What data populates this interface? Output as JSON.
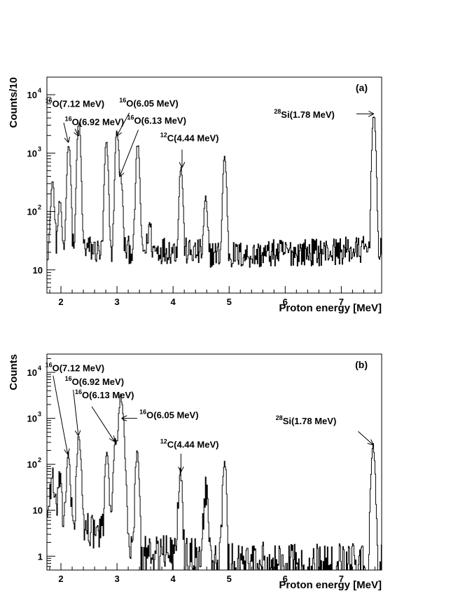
{
  "chart_data": [
    {
      "type": "histogram",
      "panel_label": "(a)",
      "xlabel": "Proton energy [MeV]",
      "ylabel": "Counts/10",
      "xlim": [
        1.75,
        7.72
      ],
      "ylim": [
        4,
        20000
      ],
      "yscale": "log",
      "xticks": [
        2,
        3,
        4,
        5,
        6,
        7
      ],
      "yticks": [
        {
          "value": 10,
          "base": "10",
          "exp": ""
        },
        {
          "value": 100,
          "base": "10",
          "exp": "2"
        },
        {
          "value": 1000,
          "base": "10",
          "exp": "3"
        },
        {
          "value": 10000,
          "base": "10",
          "exp": "4"
        }
      ],
      "background": [
        [
          1.75,
          25
        ],
        [
          2.25,
          28
        ],
        [
          2.45,
          24
        ],
        [
          2.7,
          20
        ],
        [
          3.2,
          22
        ],
        [
          3.5,
          22
        ],
        [
          4.0,
          22
        ],
        [
          4.3,
          20
        ],
        [
          5.0,
          18
        ],
        [
          5.5,
          18
        ],
        [
          6.0,
          20
        ],
        [
          6.5,
          20
        ],
        [
          7.0,
          21
        ],
        [
          7.45,
          22
        ],
        [
          7.72,
          24
        ]
      ],
      "peaks": [
        {
          "x": 1.85,
          "height": 300,
          "width": 0.022
        },
        {
          "x": 1.98,
          "height": 120,
          "width": 0.022
        },
        {
          "x": 2.14,
          "height": 1450,
          "width": 0.022
        },
        {
          "x": 2.32,
          "height": 3300,
          "width": 0.022
        },
        {
          "x": 2.81,
          "height": 1450,
          "width": 0.022
        },
        {
          "x": 3.0,
          "height": 2500,
          "width": 0.022
        },
        {
          "x": 3.07,
          "height": 350,
          "width": 0.022
        },
        {
          "x": 3.37,
          "height": 1400,
          "width": 0.022
        },
        {
          "x": 3.58,
          "height": 40,
          "width": 0.022
        },
        {
          "x": 4.14,
          "height": 550,
          "width": 0.022
        },
        {
          "x": 4.58,
          "height": 150,
          "width": 0.022
        },
        {
          "x": 4.92,
          "height": 850,
          "width": 0.022
        },
        {
          "x": 7.58,
          "height": 4700,
          "width": 0.022
        }
      ],
      "noise": 0.55,
      "bin_width": 0.0125,
      "annotations": [
        {
          "sup": "16",
          "text": "O(7.12 MeV)",
          "text_x": 1.72,
          "text_y": 6200,
          "arrow_from": [
            2.05,
            3300
          ],
          "arrow_to": [
            2.13,
            1550
          ]
        },
        {
          "sup": "16",
          "text": "O(6.92 MeV)",
          "text_x": 2.07,
          "text_y": 3000,
          "arrow_from": [
            2.25,
            2600
          ],
          "arrow_to": [
            2.31,
            2000
          ]
        },
        {
          "sup": "16",
          "text": "O(6.05 MeV)",
          "text_x": 3.04,
          "text_y": 6300,
          "arrow_from": [
            3.22,
            4900
          ],
          "arrow_to": [
            3.0,
            2000
          ]
        },
        {
          "sup": "16",
          "text": "O(6.13 MeV)",
          "text_x": 3.18,
          "text_y": 3200,
          "arrow_from": [
            3.38,
            2500
          ],
          "arrow_to": [
            3.05,
            400
          ]
        },
        {
          "sup": "12",
          "text": "C(4.44 MeV)",
          "text_x": 3.77,
          "text_y": 1600,
          "arrow_from": [
            4.16,
            1150
          ],
          "arrow_to": [
            4.16,
            580
          ]
        },
        {
          "sup": "28",
          "text": "Si(1.78 MeV)",
          "text_x": 5.8,
          "text_y": 4000,
          "arrow_from": [
            7.27,
            4700
          ],
          "arrow_to": [
            7.57,
            4700
          ]
        }
      ]
    },
    {
      "type": "histogram",
      "panel_label": "(b)",
      "xlabel": "Proton energy [MeV]",
      "ylabel": "Counts",
      "xlim": [
        1.75,
        7.72
      ],
      "ylim": [
        0.5,
        25000
      ],
      "yscale": "log",
      "xticks": [
        2,
        3,
        4,
        5,
        6,
        7
      ],
      "yticks": [
        {
          "value": 1,
          "base": "1",
          "exp": ""
        },
        {
          "value": 10,
          "base": "10",
          "exp": ""
        },
        {
          "value": 100,
          "base": "10",
          "exp": "2"
        },
        {
          "value": 1000,
          "base": "10",
          "exp": "3"
        },
        {
          "value": 10000,
          "base": "10",
          "exp": "4"
        }
      ],
      "background": [
        [
          1.75,
          10
        ],
        [
          2.05,
          7
        ],
        [
          2.25,
          6
        ],
        [
          2.5,
          4
        ],
        [
          2.75,
          3
        ],
        [
          3.0,
          2.5
        ],
        [
          3.3,
          1.8
        ],
        [
          3.6,
          1.4
        ],
        [
          4.0,
          1.2
        ],
        [
          4.5,
          1.1
        ],
        [
          5.0,
          0.9
        ],
        [
          6.0,
          0.8
        ],
        [
          7.0,
          0.8
        ],
        [
          7.72,
          0.8
        ]
      ],
      "peaks": [
        {
          "x": 1.84,
          "height": 45,
          "width": 0.022
        },
        {
          "x": 1.97,
          "height": 35,
          "width": 0.022
        },
        {
          "x": 2.13,
          "height": 150,
          "width": 0.022
        },
        {
          "x": 2.32,
          "height": 400,
          "width": 0.022
        },
        {
          "x": 2.82,
          "height": 200,
          "width": 0.022
        },
        {
          "x": 2.97,
          "height": 300,
          "width": 0.022
        },
        {
          "x": 3.07,
          "height": 2800,
          "width": 0.03
        },
        {
          "x": 3.36,
          "height": 170,
          "width": 0.022
        },
        {
          "x": 4.13,
          "height": 65,
          "width": 0.022
        },
        {
          "x": 4.58,
          "height": 30,
          "width": 0.022
        },
        {
          "x": 4.92,
          "height": 120,
          "width": 0.022
        },
        {
          "x": 7.57,
          "height": 240,
          "width": 0.022
        }
      ],
      "noise": 0.9,
      "bin_width": 0.0125,
      "annotations": [
        {
          "sup": "16",
          "text": "O(7.12 MeV)",
          "text_x": 1.72,
          "text_y": 10500,
          "arrow_from": [
            1.86,
            8500
          ],
          "arrow_to": [
            2.12,
            170
          ]
        },
        {
          "sup": "16",
          "text": "O(6.92 MeV)",
          "text_x": 2.07,
          "text_y": 5300,
          "arrow_from": [
            2.22,
            4200
          ],
          "arrow_to": [
            2.31,
            430
          ]
        },
        {
          "sup": "16",
          "text": "O(6.13 MeV)",
          "text_x": 2.25,
          "text_y": 2750,
          "arrow_from": [
            2.55,
            1800
          ],
          "arrow_to": [
            2.95,
            320
          ]
        },
        {
          "sup": "16",
          "text": "O(6.05 MeV)",
          "text_x": 3.4,
          "text_y": 1000,
          "arrow_from": [
            3.36,
            1000
          ],
          "arrow_to": [
            3.09,
            1000
          ]
        },
        {
          "sup": "12",
          "text": "C(4.44 MeV)",
          "text_x": 3.77,
          "text_y": 230,
          "arrow_from": [
            4.14,
            170
          ],
          "arrow_to": [
            4.14,
            70
          ]
        },
        {
          "sup": "28",
          "text": "Si(1.78 MeV)",
          "text_x": 5.83,
          "text_y": 750,
          "arrow_from": [
            7.3,
            520
          ],
          "arrow_to": [
            7.56,
            270
          ]
        }
      ]
    }
  ]
}
